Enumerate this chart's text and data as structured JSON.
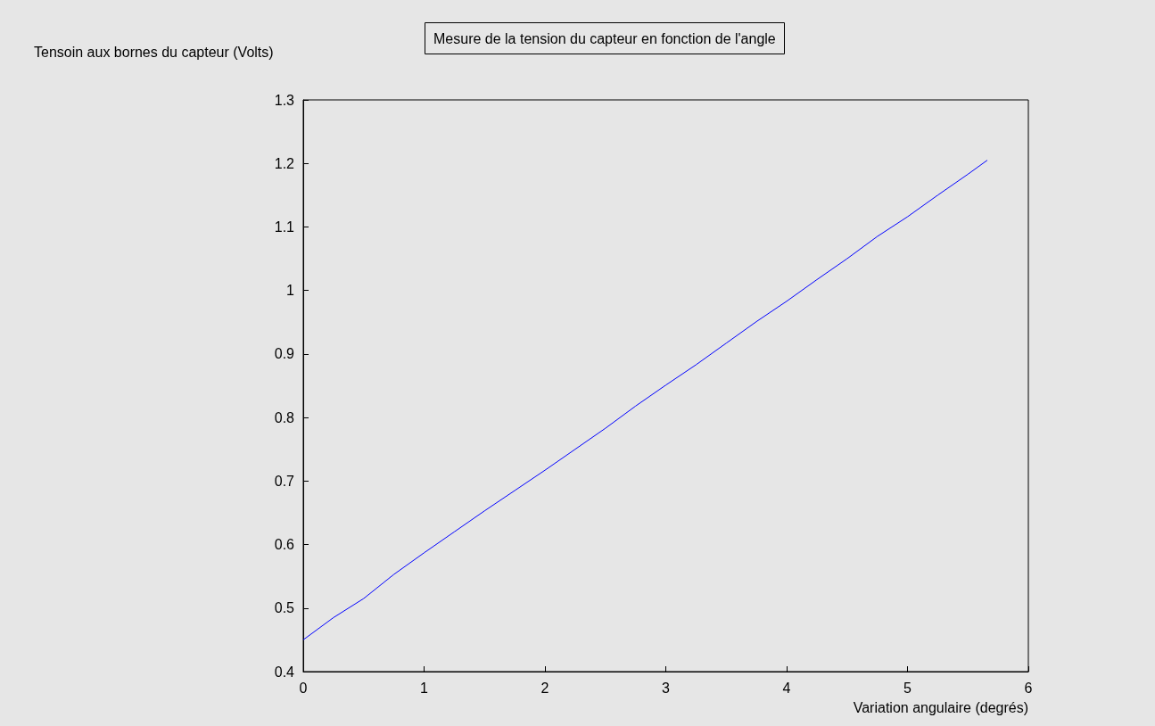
{
  "chart_data": {
    "type": "line",
    "title": "Mesure de la tension du capteur en fonction de l'angle",
    "xlabel": "Variation angulaire (degrés)",
    "ylabel": "Tensoin aux bornes du capteur (Volts)",
    "x": [
      0,
      0.25,
      0.5,
      0.75,
      1,
      1.25,
      1.5,
      1.75,
      2,
      2.25,
      2.5,
      2.75,
      3,
      3.25,
      3.5,
      3.75,
      4,
      4.25,
      4.5,
      4.75,
      5,
      5.25,
      5.5,
      5.66
    ],
    "series": [
      {
        "color": "#0000ff",
        "values": [
          0.45,
          0.485,
          0.515,
          0.553,
          0.587,
          0.62,
          0.653,
          0.685,
          0.717,
          0.75,
          0.783,
          0.818,
          0.851,
          0.883,
          0.917,
          0.951,
          0.983,
          1.017,
          1.05,
          1.085,
          1.116,
          1.15,
          1.183,
          1.205
        ]
      }
    ],
    "xlim": [
      0,
      6
    ],
    "xticks": [
      0,
      1,
      2,
      3,
      4,
      5,
      6
    ],
    "ylim": [
      0.4,
      1.3
    ],
    "yticks": [
      0.4,
      0.5,
      0.6,
      0.7,
      0.8,
      0.9,
      1,
      1.1,
      1.2,
      1.3
    ],
    "grid": false,
    "marker": "none",
    "line_style": "solid"
  }
}
